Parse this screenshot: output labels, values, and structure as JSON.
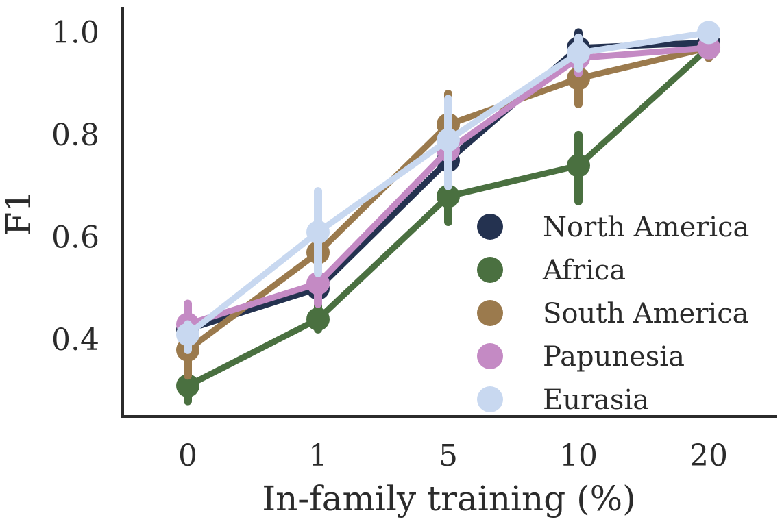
{
  "chart_data": {
    "type": "line",
    "title": "",
    "xlabel": "In-family training (%)",
    "ylabel": "F1",
    "categories": [
      "0",
      "1",
      "5",
      "10",
      "20"
    ],
    "ylim": [
      0.25,
      1.05
    ],
    "yticks": [
      "0.4",
      "0.6",
      "0.8",
      "1.0"
    ],
    "grid": false,
    "legend_position": "lower-right",
    "series": [
      {
        "name": "North America",
        "color": "#243250",
        "values": [
          0.42,
          0.5,
          0.75,
          0.97,
          0.98
        ],
        "lower": [
          0.39,
          0.45,
          0.71,
          0.93,
          0.96
        ],
        "upper": [
          0.45,
          0.55,
          0.8,
          1.0,
          0.99
        ]
      },
      {
        "name": "Africa",
        "color": "#4a7040",
        "values": [
          0.31,
          0.44,
          0.68,
          0.74,
          0.97
        ],
        "lower": [
          0.28,
          0.42,
          0.63,
          0.67,
          0.96
        ],
        "upper": [
          0.34,
          0.47,
          0.73,
          0.8,
          0.98
        ]
      },
      {
        "name": "South America",
        "color": "#9b7a4d",
        "values": [
          0.38,
          0.57,
          0.82,
          0.91,
          0.97
        ],
        "lower": [
          0.33,
          0.52,
          0.76,
          0.86,
          0.95
        ],
        "upper": [
          0.43,
          0.62,
          0.88,
          0.95,
          0.99
        ]
      },
      {
        "name": "Papunesia",
        "color": "#c48ac4",
        "values": [
          0.43,
          0.51,
          0.77,
          0.95,
          0.97
        ],
        "lower": [
          0.4,
          0.47,
          0.72,
          0.92,
          0.96
        ],
        "upper": [
          0.47,
          0.55,
          0.82,
          0.98,
          0.98
        ]
      },
      {
        "name": "Eurasia",
        "color": "#c8d8f0",
        "values": [
          0.41,
          0.61,
          0.79,
          0.96,
          1.0
        ],
        "lower": [
          0.38,
          0.53,
          0.7,
          0.93,
          0.99
        ],
        "upper": [
          0.43,
          0.69,
          0.87,
          0.99,
          1.0
        ]
      }
    ]
  }
}
